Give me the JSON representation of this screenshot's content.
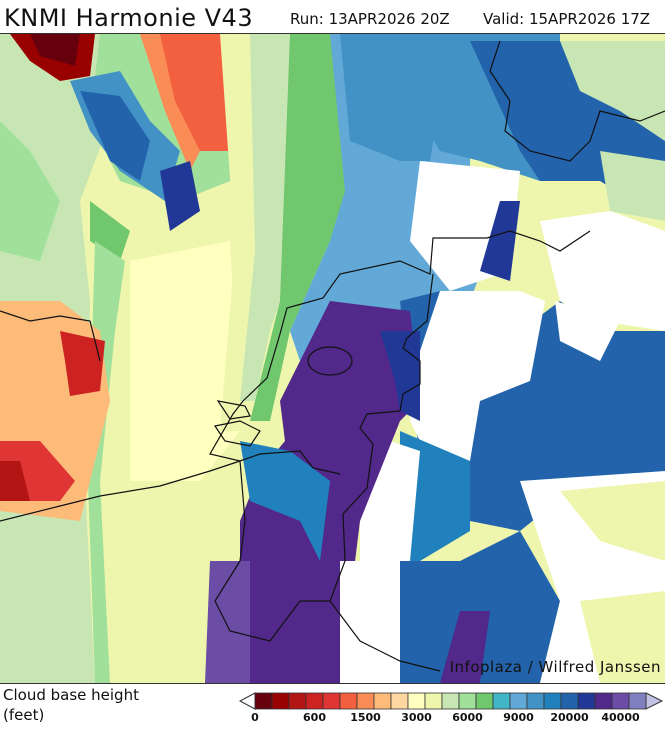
{
  "header": {
    "title": "KNMI Harmonie V43",
    "run": "Run: 13APR2026 20Z",
    "valid": "Valid: 15APR2026 17Z"
  },
  "map": {
    "credit": "Infoplaza / Wilfred Janssen",
    "region": "Netherlands and surroundings"
  },
  "legend": {
    "label_line1": "Cloud base height",
    "label_line2": "(feet)",
    "colors": [
      "#67000d",
      "#990000",
      "#b31515",
      "#cc2222",
      "#e03535",
      "#f2603f",
      "#fa8c55",
      "#fdbb7a",
      "#fdd6a0",
      "#ffffc0",
      "#eef6ae",
      "#c8e6b4",
      "#a0e09a",
      "#70c76e",
      "#42b6c6",
      "#62a9d8",
      "#4292c6",
      "#2181bd",
      "#2263ac",
      "#213896",
      "#52288a",
      "#6b4da6",
      "#807fc0"
    ],
    "under_color": "#ffffff",
    "over_color": "#c2c2e4",
    "ticks": [
      {
        "label": "0",
        "index": 0
      },
      {
        "label": "600",
        "index": 3
      },
      {
        "label": "1500",
        "index": 6
      },
      {
        "label": "3000",
        "index": 9
      },
      {
        "label": "6000",
        "index": 12
      },
      {
        "label": "9000",
        "index": 15
      },
      {
        "label": "20000",
        "index": 18
      },
      {
        "label": "40000",
        "index": 21
      }
    ]
  }
}
